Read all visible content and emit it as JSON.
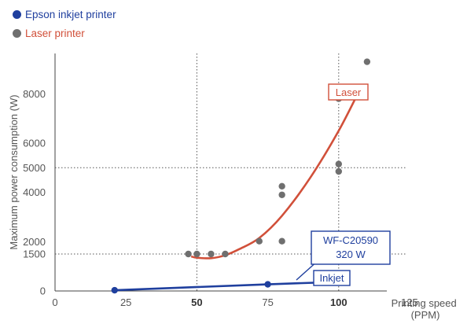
{
  "legend": {
    "inkjet_label": "Epson inkjet printer",
    "laser_label": "Laser printer",
    "inkjet_color": "#1f3f9e",
    "laser_color": "#d1503a",
    "scatter_color": "#6f6f6f"
  },
  "chart_data": {
    "type": "scatter",
    "xlabel": "Printing speed\n(PPM)",
    "ylabel": "Maximum power consumption (W)",
    "xlim": [
      0,
      125
    ],
    "ylim": [
      0,
      9700
    ],
    "x_ticks": [
      0,
      25,
      50,
      75,
      100,
      125
    ],
    "x_ticks_bold": [
      50,
      100
    ],
    "y_ticks": [
      0,
      1500,
      2000,
      4000,
      5000,
      6000,
      8000
    ],
    "reference_lines": {
      "x": [
        50,
        100
      ],
      "y": [
        1500,
        5000
      ]
    },
    "grid": false,
    "series": [
      {
        "name": "Epson inkjet printer",
        "type": "line",
        "x": [
          21,
          75,
          100
        ],
        "y": [
          30,
          270,
          370
        ]
      },
      {
        "name": "Laser printer",
        "type": "scatter",
        "x": [
          47,
          50,
          55,
          60,
          72,
          80,
          80,
          80,
          100,
          100,
          100,
          110
        ],
        "y": [
          1500,
          1500,
          1500,
          1500,
          2020,
          2020,
          3900,
          4250,
          4850,
          5150,
          7800,
          9300
        ]
      },
      {
        "name": "Laser",
        "type": "trend",
        "x": [
          48,
          50,
          55,
          60,
          65,
          72,
          80,
          90,
          100,
          108
        ],
        "y": [
          1400,
          1350,
          1330,
          1450,
          1700,
          2150,
          3050,
          4600,
          6500,
          8300
        ]
      }
    ],
    "annotations": {
      "laser_tag": "Laser",
      "inkjet_tag": "Inkjet",
      "model_name": "WF-C20590",
      "model_power": "320 W"
    }
  }
}
